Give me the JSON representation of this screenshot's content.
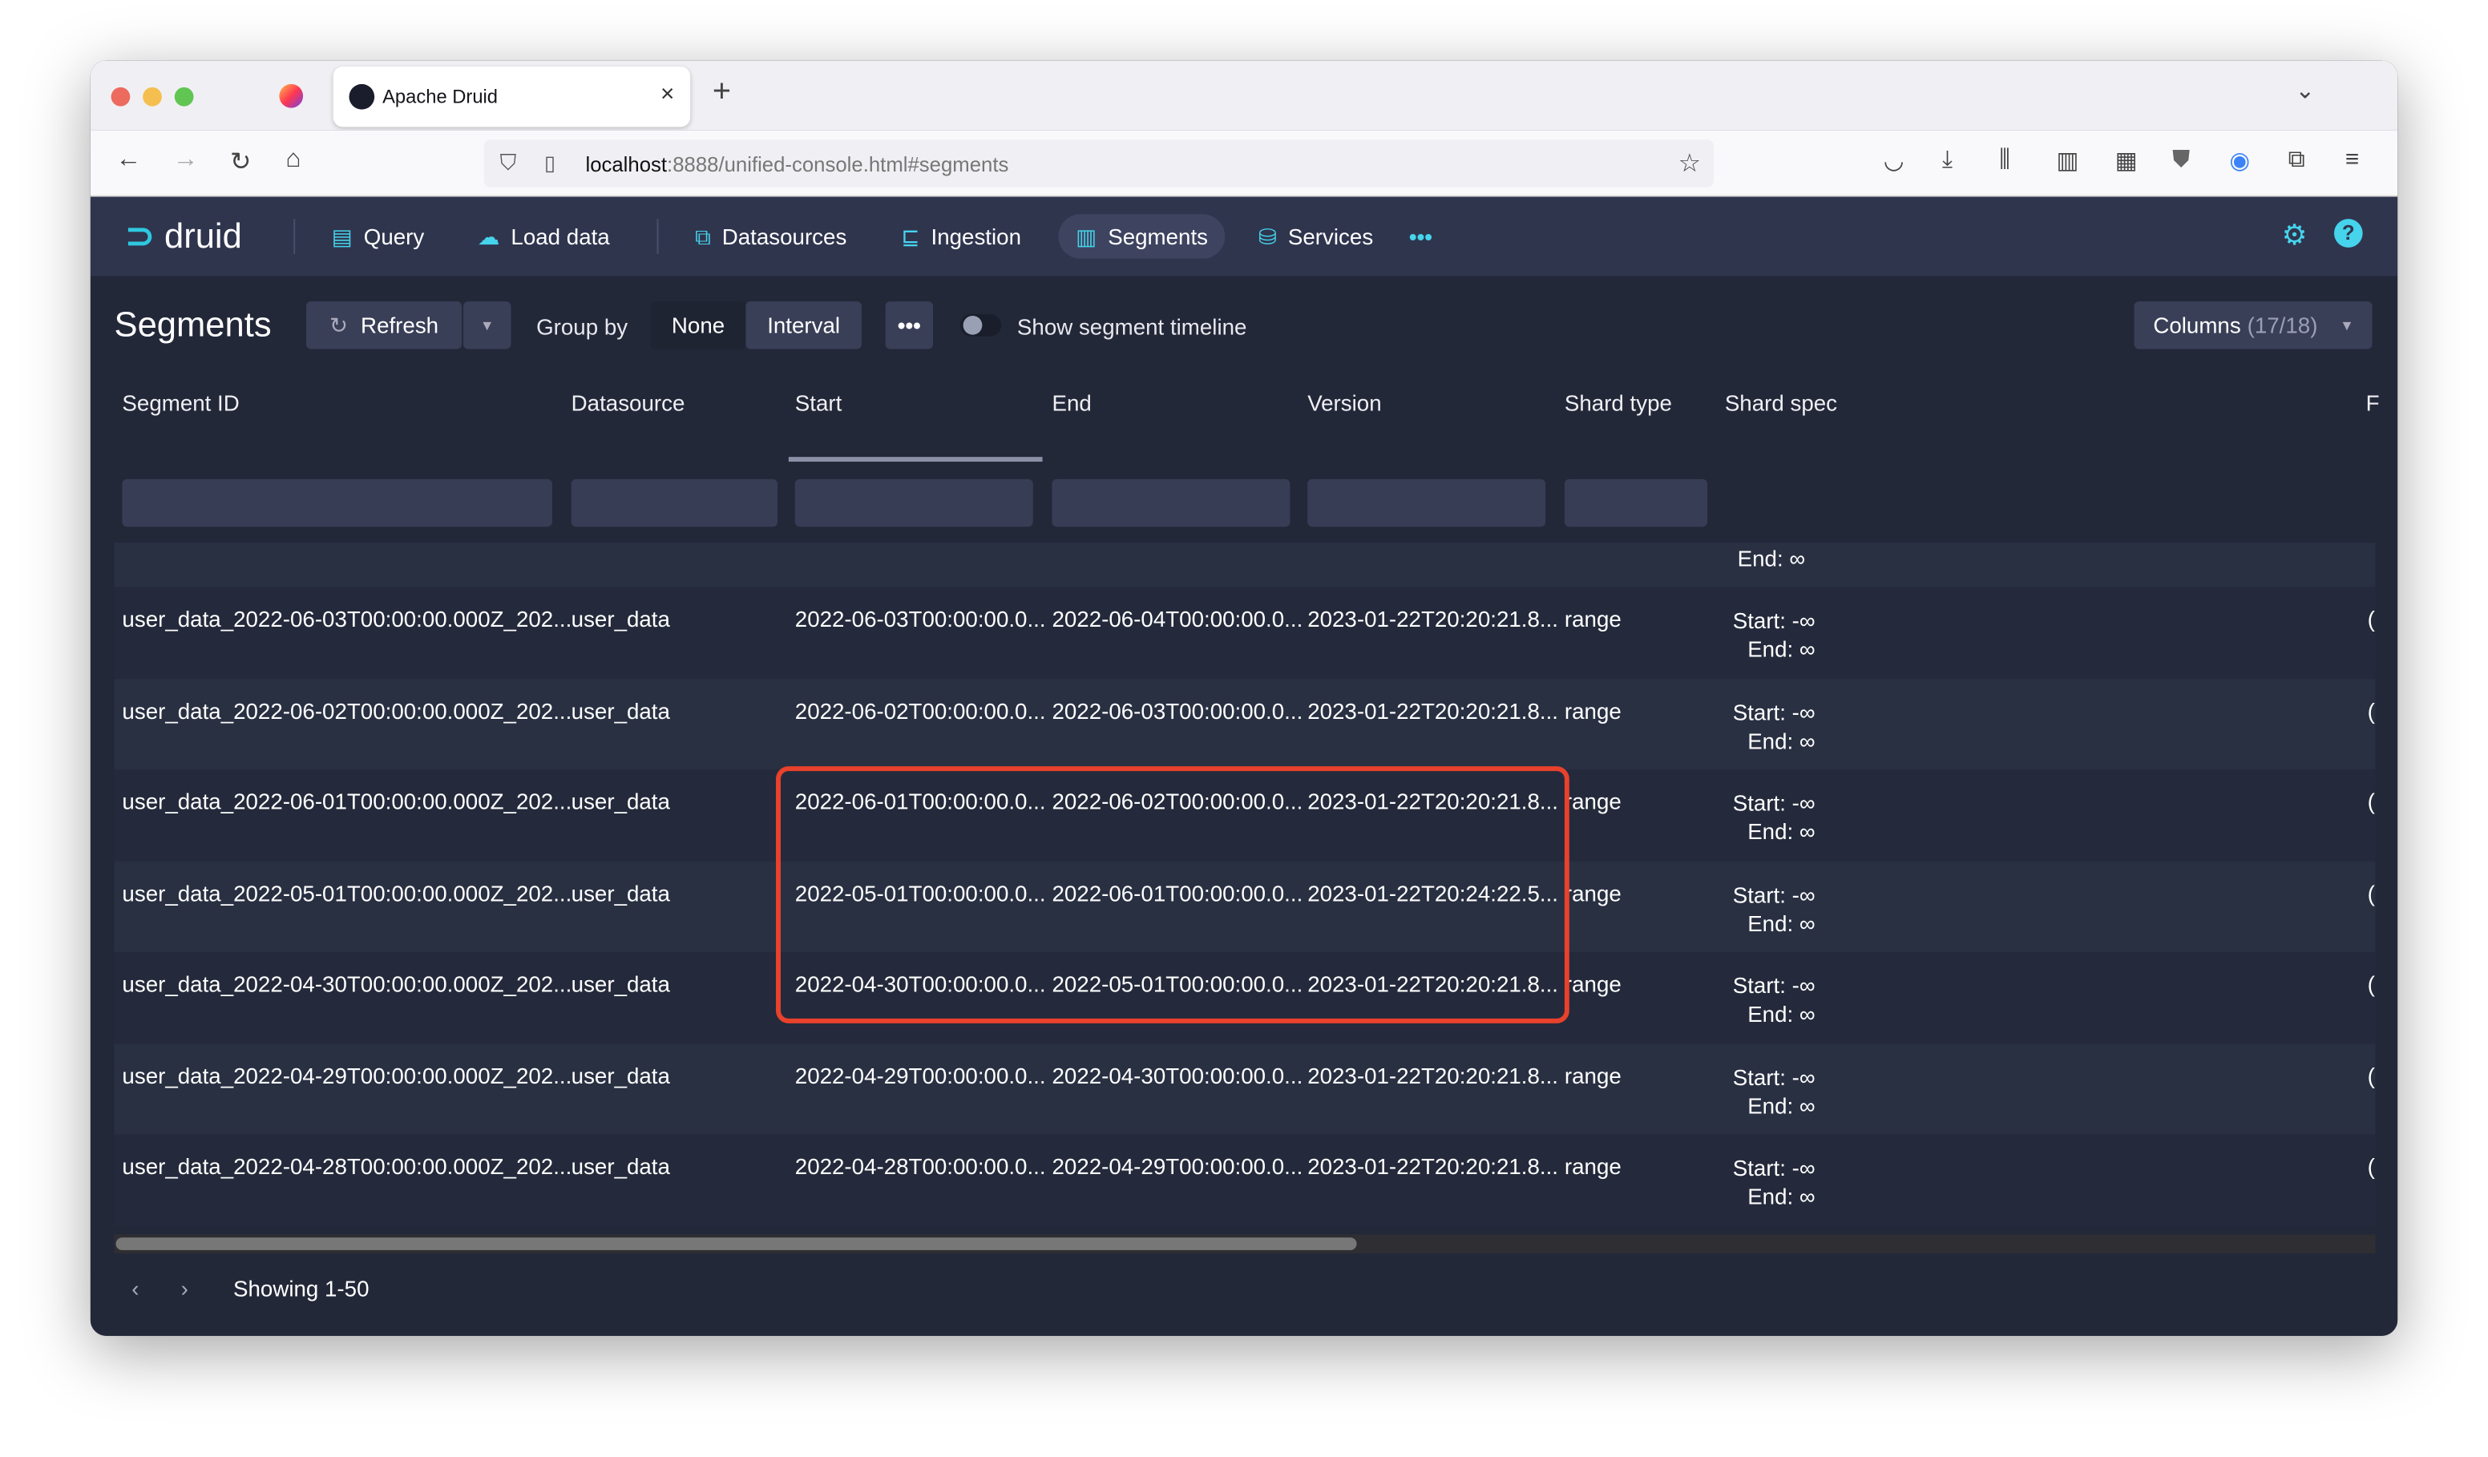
{
  "browser": {
    "tab_title": "Apache Druid",
    "url_host": "localhost",
    "url_rest": ":8888/unified-console.html#segments"
  },
  "app": {
    "logo": "druid",
    "nav": [
      {
        "label": "Query",
        "icon": "query-icon"
      },
      {
        "label": "Load data",
        "icon": "upload-icon"
      },
      {
        "label": "Datasources",
        "icon": "datasources-icon"
      },
      {
        "label": "Ingestion",
        "icon": "ingestion-icon"
      },
      {
        "label": "Segments",
        "icon": "segments-icon",
        "active": true
      },
      {
        "label": "Services",
        "icon": "services-icon"
      }
    ]
  },
  "page": {
    "title": "Segments",
    "refresh": "Refresh",
    "group_by": "Group by",
    "group_none": "None",
    "group_interval": "Interval",
    "timeline_label": "Show segment timeline",
    "columns_label": "Columns",
    "columns_count": "(17/18)"
  },
  "table": {
    "headers": [
      "Segment ID",
      "Datasource",
      "Start",
      "End",
      "Version",
      "Shard type",
      "Shard spec",
      "F"
    ],
    "partial_row": {
      "spec_end": "End: ∞"
    },
    "rows": [
      {
        "id": "user_data_2022-06-03T00:00:00.000Z_202...",
        "ds": "user_data",
        "start": "2022-06-03T00:00:00.0...",
        "end": "2022-06-04T00:00:00.0...",
        "version": "2023-01-22T20:20:21.8...",
        "shard": "range",
        "spec_start": "Start: -∞",
        "spec_end": "End: ∞",
        "last": "("
      },
      {
        "id": "user_data_2022-06-02T00:00:00.000Z_202...",
        "ds": "user_data",
        "start": "2022-06-02T00:00:00.0...",
        "end": "2022-06-03T00:00:00.0...",
        "version": "2023-01-22T20:20:21.8...",
        "shard": "range",
        "spec_start": "Start: -∞",
        "spec_end": "End: ∞",
        "last": "("
      },
      {
        "id": "user_data_2022-06-01T00:00:00.000Z_202...",
        "ds": "user_data",
        "start": "2022-06-01T00:00:00.0...",
        "end": "2022-06-02T00:00:00.0...",
        "version": "2023-01-22T20:20:21.8...",
        "shard": "range",
        "spec_start": "Start: -∞",
        "spec_end": "End: ∞",
        "last": "("
      },
      {
        "id": "user_data_2022-05-01T00:00:00.000Z_202...",
        "ds": "user_data",
        "start": "2022-05-01T00:00:00.0...",
        "end": "2022-06-01T00:00:00.0...",
        "version": "2023-01-22T20:24:22.5...",
        "shard": "range",
        "spec_start": "Start: -∞",
        "spec_end": "End: ∞",
        "last": "("
      },
      {
        "id": "user_data_2022-04-30T00:00:00.000Z_202...",
        "ds": "user_data",
        "start": "2022-04-30T00:00:00.0...",
        "end": "2022-05-01T00:00:00.0...",
        "version": "2023-01-22T20:20:21.8...",
        "shard": "range",
        "spec_start": "Start: -∞",
        "spec_end": "End: ∞",
        "last": "("
      },
      {
        "id": "user_data_2022-04-29T00:00:00.000Z_202...",
        "ds": "user_data",
        "start": "2022-04-29T00:00:00.0...",
        "end": "2022-04-30T00:00:00.0...",
        "version": "2023-01-22T20:20:21.8...",
        "shard": "range",
        "spec_start": "Start: -∞",
        "spec_end": "End: ∞",
        "last": "("
      },
      {
        "id": "user_data_2022-04-28T00:00:00.000Z_202...",
        "ds": "user_data",
        "start": "2022-04-28T00:00:00.0...",
        "end": "2022-04-29T00:00:00.0...",
        "version": "2023-01-22T20:20:21.8...",
        "shard": "range",
        "spec_start": "Start: -∞",
        "spec_end": "End: ∞",
        "last": "("
      }
    ]
  },
  "footer": {
    "showing": "Showing 1-50"
  },
  "colors": {
    "accent": "#45d4ec",
    "highlight": "#e8412c",
    "header_bg": "#30354e",
    "content_bg": "#232839"
  }
}
